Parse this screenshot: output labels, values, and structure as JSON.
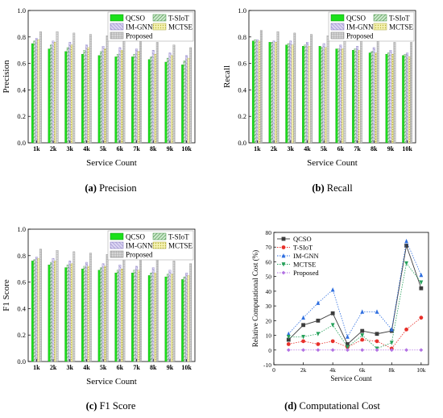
{
  "chart_data": [
    {
      "id": "a",
      "type": "bar",
      "caption_letter": "(a)",
      "caption_text": "Precision",
      "xlabel": "Service Count",
      "ylabel": "Precision",
      "ylim": [
        0,
        1.0
      ],
      "yticks": [
        "0.0",
        "0.2",
        "0.4",
        "0.6",
        "0.8",
        "1.0"
      ],
      "categories": [
        "1k",
        "2k",
        "3k",
        "4k",
        "5k",
        "6k",
        "7k",
        "8k",
        "9k",
        "10k"
      ],
      "legend": "top-right",
      "series": [
        {
          "name": "QCSO",
          "values": [
            0.75,
            0.71,
            0.69,
            0.67,
            0.66,
            0.65,
            0.65,
            0.63,
            0.61,
            0.59
          ]
        },
        {
          "name": "T-SIoT",
          "values": [
            0.77,
            0.74,
            0.72,
            0.7,
            0.69,
            0.67,
            0.67,
            0.65,
            0.64,
            0.62
          ]
        },
        {
          "name": "IM-GNN",
          "values": [
            0.79,
            0.77,
            0.76,
            0.74,
            0.73,
            0.72,
            0.71,
            0.7,
            0.68,
            0.66
          ]
        },
        {
          "name": "MCTSE",
          "values": [
            0.78,
            0.76,
            0.74,
            0.72,
            0.71,
            0.7,
            0.69,
            0.67,
            0.66,
            0.64
          ]
        },
        {
          "name": "Proposed",
          "values": [
            0.84,
            0.84,
            0.83,
            0.82,
            0.81,
            0.79,
            0.78,
            0.76,
            0.74,
            0.72
          ]
        }
      ]
    },
    {
      "id": "b",
      "type": "bar",
      "caption_letter": "(b)",
      "caption_text": "Recall",
      "xlabel": "Service Count",
      "ylabel": "Recall",
      "ylim": [
        0,
        1.0
      ],
      "yticks": [
        "0.0",
        "0.2",
        "0.4",
        "0.6",
        "0.8",
        "1.0"
      ],
      "categories": [
        "1k",
        "2k",
        "3k",
        "4k",
        "5k",
        "6k",
        "7k",
        "8k",
        "9k",
        "10k"
      ],
      "legend": "top-right",
      "series": [
        {
          "name": "QCSO",
          "values": [
            0.77,
            0.76,
            0.74,
            0.73,
            0.73,
            0.71,
            0.7,
            0.68,
            0.67,
            0.66
          ]
        },
        {
          "name": "T-SIoT",
          "values": [
            0.78,
            0.76,
            0.75,
            0.74,
            0.72,
            0.71,
            0.71,
            0.69,
            0.68,
            0.67
          ]
        },
        {
          "name": "IM-GNN",
          "values": [
            0.78,
            0.77,
            0.77,
            0.76,
            0.75,
            0.74,
            0.73,
            0.72,
            0.7,
            0.68
          ]
        },
        {
          "name": "MCTSE",
          "values": [
            0.77,
            0.76,
            0.74,
            0.73,
            0.72,
            0.71,
            0.7,
            0.68,
            0.67,
            0.65
          ]
        },
        {
          "name": "Proposed",
          "values": [
            0.85,
            0.84,
            0.83,
            0.82,
            0.81,
            0.8,
            0.79,
            0.78,
            0.76,
            0.76
          ]
        }
      ]
    },
    {
      "id": "c",
      "type": "bar",
      "caption_letter": "(c)",
      "caption_text": "F1 Score",
      "xlabel": "Service Count",
      "ylabel": "F1 Score",
      "ylim": [
        0,
        1.0
      ],
      "yticks": [
        "0.0",
        "0.2",
        "0.4",
        "0.6",
        "0.8",
        "1.0"
      ],
      "categories": [
        "1k",
        "2k",
        "3k",
        "4k",
        "5k",
        "6k",
        "7k",
        "8k",
        "9k",
        "10k"
      ],
      "legend": "top-right",
      "series": [
        {
          "name": "QCSO",
          "values": [
            0.76,
            0.73,
            0.71,
            0.7,
            0.69,
            0.67,
            0.67,
            0.65,
            0.64,
            0.62
          ]
        },
        {
          "name": "T-SIoT",
          "values": [
            0.77,
            0.75,
            0.73,
            0.72,
            0.71,
            0.69,
            0.69,
            0.67,
            0.66,
            0.64
          ]
        },
        {
          "name": "IM-GNN",
          "values": [
            0.79,
            0.78,
            0.76,
            0.75,
            0.74,
            0.73,
            0.72,
            0.71,
            0.69,
            0.67
          ]
        },
        {
          "name": "MCTSE",
          "values": [
            0.78,
            0.76,
            0.74,
            0.72,
            0.72,
            0.7,
            0.69,
            0.67,
            0.66,
            0.65
          ]
        },
        {
          "name": "Proposed",
          "values": [
            0.85,
            0.84,
            0.83,
            0.82,
            0.81,
            0.8,
            0.78,
            0.77,
            0.76,
            0.74
          ]
        }
      ]
    },
    {
      "id": "d",
      "type": "line",
      "caption_letter": "(d)",
      "caption_text": "Computational Cost",
      "xlabel": "Service Count",
      "ylabel": "Relative Computational Cost (%)",
      "xlim": [
        0,
        10.5
      ],
      "ylim": [
        -10,
        80
      ],
      "xticks": [
        "0",
        "2k",
        "4k",
        "6k",
        "8k",
        "10k"
      ],
      "yticks": [
        "-10",
        "0",
        "10",
        "20",
        "30",
        "40",
        "50",
        "60",
        "70",
        "80"
      ],
      "x": [
        1,
        2,
        3,
        4,
        5,
        6,
        7,
        8,
        9,
        10
      ],
      "legend": "top-left",
      "series": [
        {
          "name": "QCSO",
          "values": [
            7,
            17,
            20,
            25,
            4,
            13,
            11,
            13,
            71,
            42
          ]
        },
        {
          "name": "T-SIoT",
          "values": [
            4,
            6,
            4,
            6,
            2,
            7,
            6,
            1,
            14,
            22
          ]
        },
        {
          "name": "IM-GNN",
          "values": [
            11,
            22,
            32,
            41,
            9,
            26,
            26,
            14,
            74,
            51
          ]
        },
        {
          "name": "MCTSE",
          "values": [
            9,
            9,
            11,
            17,
            2,
            10,
            1,
            5,
            59,
            46
          ]
        },
        {
          "name": "Proposed",
          "values": [
            0,
            0,
            0,
            0,
            0,
            0,
            0,
            0,
            0,
            0
          ]
        }
      ]
    }
  ],
  "styles": {
    "bar_colors": [
      "#1be01b",
      "#6cbd6c",
      "#c7bde8",
      "#f2f0a6",
      "#bfbfbf"
    ],
    "line_colors": [
      "#3d3d3d",
      "#e8302a",
      "#2f6fe0",
      "#25a05a",
      "#b272e3"
    ],
    "bar_patterns": [
      "solid",
      "hatch-diagonal",
      "hatch-diagonal",
      "crosshatch-dotted",
      "grid"
    ],
    "line_markers": [
      "square",
      "circle",
      "triangle-up",
      "triangle-down",
      "diamond"
    ]
  }
}
